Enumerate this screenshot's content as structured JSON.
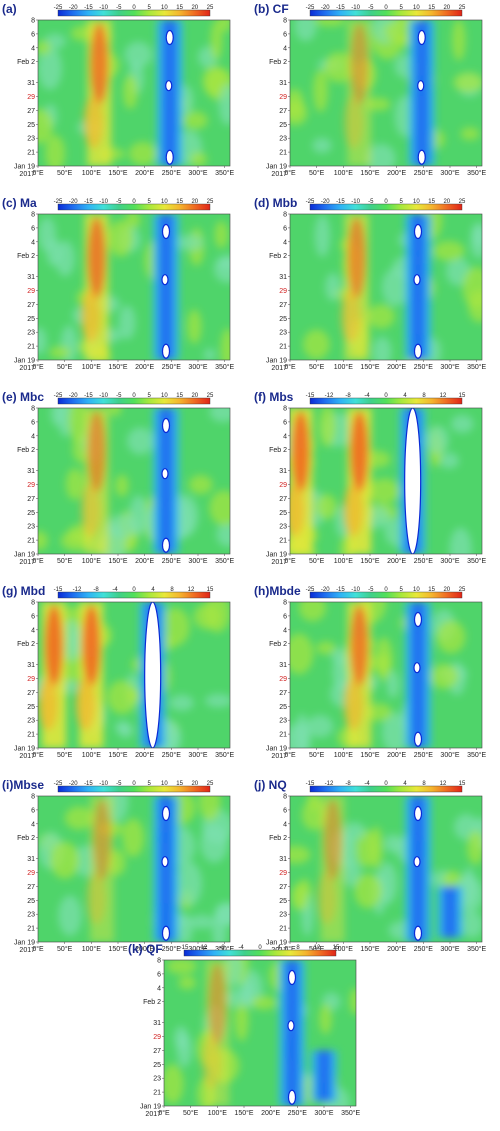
{
  "figure": {
    "x_ticks": [
      "0°E",
      "50°E",
      "100°E",
      "150°E",
      "200°E",
      "250°E",
      "300°E",
      "350°E"
    ],
    "y_ticks": [
      {
        "label": "8",
        "day": 8,
        "highlight": false
      },
      {
        "label": "6",
        "day": 6,
        "highlight": false
      },
      {
        "label": "4",
        "day": 4,
        "highlight": false
      },
      {
        "label": "Feb  2",
        "day": 2,
        "highlight": false
      },
      {
        "label": "31",
        "day": -1,
        "highlight": false
      },
      {
        "label": "29",
        "day": -3,
        "highlight": true
      },
      {
        "label": "27",
        "day": -5,
        "highlight": false
      },
      {
        "label": "25",
        "day": -7,
        "highlight": false
      },
      {
        "label": "23",
        "day": -9,
        "highlight": false
      },
      {
        "label": "21",
        "day": -11,
        "highlight": false
      },
      {
        "label": "Jan  19",
        "day": -13,
        "highlight": false
      }
    ],
    "year_label": "2017",
    "colorscale": [
      "#0a2bd6",
      "#1f6ff0",
      "#2fb3f5",
      "#41e0d8",
      "#3fd08a",
      "#52e05a",
      "#a8e83c",
      "#e8e83a",
      "#f4b52e",
      "#ef6a22",
      "#e02418"
    ]
  },
  "chart_data": [
    {
      "type": "heatmap",
      "label": "(a)",
      "colorbar": [
        "-25",
        "-20",
        "-15",
        "-10",
        "-5",
        "0",
        "5",
        "10",
        "15",
        "20",
        "25"
      ],
      "range": [
        -25,
        25
      ]
    },
    {
      "type": "heatmap",
      "label": "(b) CF",
      "colorbar": [
        "-25",
        "-20",
        "-15",
        "-10",
        "-5",
        "0",
        "5",
        "10",
        "15",
        "20",
        "25"
      ],
      "range": [
        -25,
        25
      ]
    },
    {
      "type": "heatmap",
      "label": "(c) Ma",
      "colorbar": [
        "-25",
        "-20",
        "-15",
        "-10",
        "-5",
        "0",
        "5",
        "10",
        "15",
        "20",
        "25"
      ],
      "range": [
        -25,
        25
      ]
    },
    {
      "type": "heatmap",
      "label": "(d) Mbb",
      "colorbar": [
        "-25",
        "-20",
        "-15",
        "-10",
        "-5",
        "0",
        "5",
        "10",
        "15",
        "20",
        "25"
      ],
      "range": [
        -25,
        25
      ]
    },
    {
      "type": "heatmap",
      "label": "(e) Mbc",
      "colorbar": [
        "-25",
        "-20",
        "-15",
        "-10",
        "-5",
        "0",
        "5",
        "10",
        "15",
        "20",
        "25"
      ],
      "range": [
        -25,
        25
      ]
    },
    {
      "type": "heatmap",
      "label": "(f) Mbs",
      "colorbar": [
        "-15",
        "-12",
        "-8",
        "-4",
        "0",
        "4",
        "8",
        "12",
        "15"
      ],
      "range": [
        -15,
        15
      ]
    },
    {
      "type": "heatmap",
      "label": "(g) Mbd",
      "colorbar": [
        "-15",
        "-12",
        "-8",
        "-4",
        "0",
        "4",
        "8",
        "12",
        "15"
      ],
      "range": [
        -15,
        15
      ]
    },
    {
      "type": "heatmap",
      "label": "(h)Mbde",
      "colorbar": [
        "-25",
        "-20",
        "-15",
        "-10",
        "-5",
        "0",
        "5",
        "10",
        "15",
        "20",
        "25"
      ],
      "range": [
        -25,
        25
      ]
    },
    {
      "type": "heatmap",
      "label": "(i)Mbse",
      "colorbar": [
        "-25",
        "-20",
        "-15",
        "-10",
        "-5",
        "0",
        "5",
        "10",
        "15",
        "20",
        "25"
      ],
      "range": [
        -25,
        25
      ]
    },
    {
      "type": "heatmap",
      "label": "(j) NQ",
      "colorbar": [
        "-15",
        "-12",
        "-8",
        "-4",
        "0",
        "4",
        "8",
        "12",
        "15"
      ],
      "range": [
        -15,
        15
      ]
    },
    {
      "type": "heatmap",
      "label": "(k) QF",
      "colorbar": [
        "-15",
        "-12",
        "-8",
        "-4",
        "0",
        "4",
        "8",
        "12",
        "15"
      ],
      "range": [
        -15,
        15
      ]
    }
  ]
}
